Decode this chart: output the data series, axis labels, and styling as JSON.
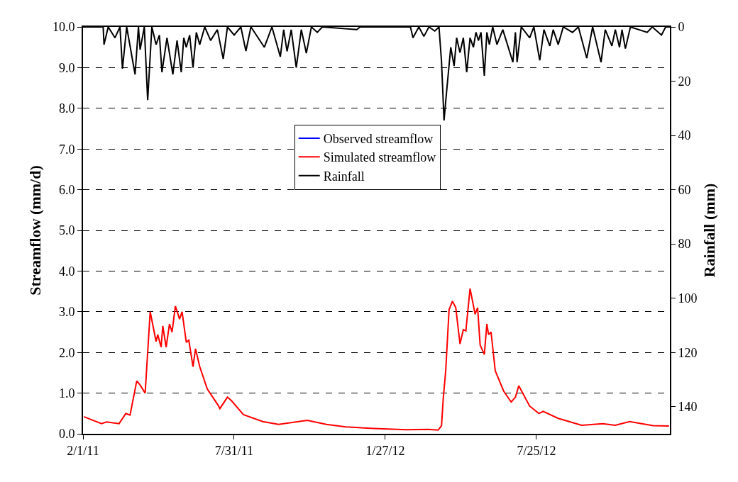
{
  "chart_data": {
    "type": "line",
    "ylabel": "Streamflow (mm/d)",
    "y2label": "Rainfall (mm)",
    "xlim": [
      "2011-02-01",
      "2012-12-31"
    ],
    "xticks": [
      {
        "value": "2011-02-01",
        "label": "2/1/11"
      },
      {
        "value": "2011-07-31",
        "label": "7/31/11"
      },
      {
        "value": "2012-01-27",
        "label": "1/27/12"
      },
      {
        "value": "2012-07-25",
        "label": "7/25/12"
      }
    ],
    "ylim": [
      0,
      10
    ],
    "yticks": [
      {
        "value": 0,
        "label": "0.0"
      },
      {
        "value": 1,
        "label": "1.0"
      },
      {
        "value": 2,
        "label": "2.0"
      },
      {
        "value": 3,
        "label": "3.0"
      },
      {
        "value": 4,
        "label": "4.0"
      },
      {
        "value": 5,
        "label": "5.0"
      },
      {
        "value": 6,
        "label": "6.0"
      },
      {
        "value": 7,
        "label": "7.0"
      },
      {
        "value": 8,
        "label": "8.0"
      },
      {
        "value": 9,
        "label": "9.0"
      },
      {
        "value": 10,
        "label": "10.0"
      }
    ],
    "y2lim": [
      150,
      0
    ],
    "y2ticks": [
      0,
      20,
      40,
      60,
      80,
      100,
      120,
      140
    ],
    "grid": "y",
    "legend": "top center",
    "line_style": "solid",
    "series": [
      {
        "name": "Observed streamflow",
        "color": "#0000ff"
      },
      {
        "name": "Simulated streamflow",
        "color": "#ff0000",
        "x": [
          "2011-02-02",
          "2011-02-23",
          "2011-03-01",
          "2011-03-16",
          "2011-03-24",
          "2011-03-29",
          "2011-04-06",
          "2011-04-10",
          "2011-04-16",
          "2011-04-19",
          "2011-04-22",
          "2011-04-29",
          "2011-05-01",
          "2011-05-05",
          "2011-05-07",
          "2011-05-11",
          "2011-05-15",
          "2011-05-18",
          "2011-05-22",
          "2011-05-27",
          "2011-05-30",
          "2011-06-04",
          "2011-06-07",
          "2011-06-12",
          "2011-06-15",
          "2011-06-20",
          "2011-06-29",
          "2011-07-12",
          "2011-07-14",
          "2011-07-23",
          "2011-07-28",
          "2011-08-11",
          "2011-09-03",
          "2011-09-22",
          "2011-10-26",
          "2011-11-18",
          "2011-12-11",
          "2012-01-14",
          "2012-02-21",
          "2012-03-18",
          "2012-03-30",
          "2012-04-03",
          "2012-04-05",
          "2012-04-08",
          "2012-04-12",
          "2012-04-16",
          "2012-04-20",
          "2012-04-25",
          "2012-04-29",
          "2012-05-02",
          "2012-05-07",
          "2012-05-13",
          "2012-05-16",
          "2012-05-19",
          "2012-05-24",
          "2012-05-27",
          "2012-05-29",
          "2012-06-01",
          "2012-06-06",
          "2012-06-16",
          "2012-06-25",
          "2012-06-30",
          "2012-07-04",
          "2012-07-17",
          "2012-07-28",
          "2012-08-02",
          "2012-08-20",
          "2012-09-17",
          "2012-10-12",
          "2012-10-27",
          "2012-11-13",
          "2012-12-11",
          "2012-12-30"
        ],
        "values": [
          0.42,
          0.25,
          0.29,
          0.25,
          0.5,
          0.46,
          1.3,
          1.2,
          1.0,
          2.0,
          3.0,
          2.27,
          2.44,
          2.13,
          2.65,
          2.13,
          2.7,
          2.5,
          3.14,
          2.82,
          3.0,
          2.25,
          2.3,
          1.65,
          2.09,
          1.65,
          1.1,
          0.7,
          0.62,
          0.9,
          0.81,
          0.47,
          0.3,
          0.23,
          0.33,
          0.23,
          0.17,
          0.13,
          0.1,
          0.11,
          0.09,
          0.2,
          0.85,
          1.55,
          3.05,
          3.26,
          3.1,
          2.21,
          2.56,
          2.53,
          3.57,
          2.94,
          3.1,
          2.18,
          1.95,
          2.7,
          2.44,
          2.5,
          1.55,
          1.05,
          0.78,
          0.9,
          1.18,
          0.68,
          0.5,
          0.55,
          0.38,
          0.21,
          0.25,
          0.21,
          0.3,
          0.2,
          0.19
        ]
      },
      {
        "name": "Rainfall",
        "color": "#000000",
        "axis": "y2",
        "x": [
          "2011-02-01",
          "2011-02-25",
          "2011-02-26",
          "2011-03-03",
          "2011-03-11",
          "2011-03-17",
          "2011-03-20",
          "2011-03-25",
          "2011-04-04",
          "2011-04-08",
          "2011-04-10",
          "2011-04-15",
          "2011-04-19",
          "2011-04-24",
          "2011-04-29",
          "2011-05-03",
          "2011-05-06",
          "2011-05-12",
          "2011-05-19",
          "2011-05-24",
          "2011-05-29",
          "2011-06-01",
          "2011-06-04",
          "2011-06-08",
          "2011-06-12",
          "2011-06-16",
          "2011-06-20",
          "2011-06-26",
          "2011-07-03",
          "2011-07-11",
          "2011-07-18",
          "2011-07-23",
          "2011-07-31",
          "2011-08-08",
          "2011-08-14",
          "2011-08-20",
          "2011-09-05",
          "2011-09-14",
          "2011-09-24",
          "2011-09-28",
          "2011-10-02",
          "2011-10-07",
          "2011-10-13",
          "2011-10-19",
          "2011-10-25",
          "2011-10-31",
          "2011-11-07",
          "2011-11-13",
          "2011-12-24",
          "2011-12-28",
          "2012-02-26",
          "2012-02-29",
          "2012-03-07",
          "2012-03-13",
          "2012-03-19",
          "2012-03-26",
          "2012-03-31",
          "2012-04-03",
          "2012-04-06",
          "2012-04-09",
          "2012-04-14",
          "2012-04-18",
          "2012-04-21",
          "2012-04-25",
          "2012-04-29",
          "2012-05-03",
          "2012-05-07",
          "2012-05-11",
          "2012-05-14",
          "2012-05-17",
          "2012-05-20",
          "2012-05-24",
          "2012-05-27",
          "2012-05-30",
          "2012-06-03",
          "2012-06-08",
          "2012-06-15",
          "2012-06-27",
          "2012-06-30",
          "2012-07-02",
          "2012-07-07",
          "2012-07-17",
          "2012-07-22",
          "2012-07-29",
          "2012-08-03",
          "2012-08-10",
          "2012-08-14",
          "2012-08-20",
          "2012-08-26",
          "2012-09-06",
          "2012-09-13",
          "2012-09-23",
          "2012-09-30",
          "2012-10-10",
          "2012-10-15",
          "2012-10-23",
          "2012-10-27",
          "2012-11-01",
          "2012-11-04",
          "2012-11-08",
          "2012-11-14",
          "2012-12-04",
          "2012-12-10",
          "2012-12-21",
          "2012-12-26",
          "2012-12-31"
        ],
        "values": [
          0,
          0,
          6.5,
          0,
          4,
          0,
          15.4,
          0,
          17.5,
          0,
          8.4,
          0,
          27,
          0,
          6.5,
          3,
          16.7,
          4,
          17.5,
          5,
          16.7,
          4,
          7.5,
          3,
          15,
          2,
          6.5,
          0,
          5,
          1,
          11.8,
          0,
          3,
          0,
          8.9,
          0,
          7.5,
          0,
          11,
          1,
          9,
          1,
          15,
          1,
          9.7,
          0,
          2,
          0,
          1,
          0,
          0,
          4,
          0,
          3.5,
          0,
          1.5,
          0,
          12.8,
          34.5,
          24,
          7.5,
          14.4,
          4,
          9.5,
          4,
          16.7,
          4,
          7.5,
          2,
          5,
          2,
          18,
          2,
          6.5,
          0,
          6.5,
          1,
          13,
          2,
          13,
          0,
          4,
          0,
          12.3,
          1,
          7,
          1,
          6.5,
          0,
          2,
          0,
          11.5,
          0,
          13,
          1,
          7,
          1,
          7.5,
          1,
          8,
          0,
          2,
          0,
          3,
          0,
          0
        ]
      }
    ]
  }
}
